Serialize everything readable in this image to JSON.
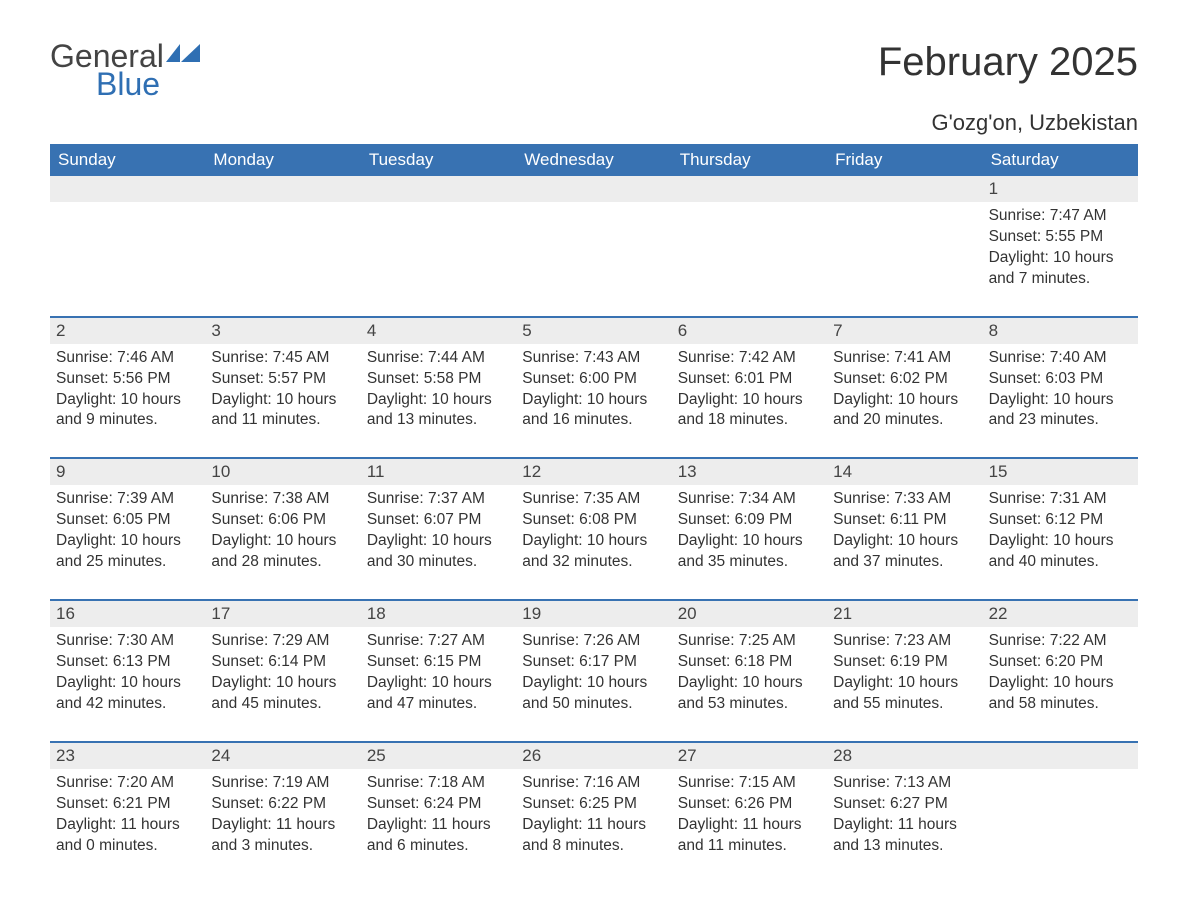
{
  "logo": {
    "general": "General",
    "blue": "Blue"
  },
  "title": "February 2025",
  "location": "G'ozg'on, Uzbekistan",
  "colors": {
    "header_bg": "#3872b2",
    "header_text": "#ffffff",
    "date_bar_bg": "#ededed",
    "rule": "#3872b2",
    "logo_blue": "#2f6fb3",
    "text": "#333333",
    "background": "#ffffff"
  },
  "day_names": [
    "Sunday",
    "Monday",
    "Tuesday",
    "Wednesday",
    "Thursday",
    "Friday",
    "Saturday"
  ],
  "weeks": [
    [
      {
        "date": "",
        "sunrise": "",
        "sunset": "",
        "daylight": ""
      },
      {
        "date": "",
        "sunrise": "",
        "sunset": "",
        "daylight": ""
      },
      {
        "date": "",
        "sunrise": "",
        "sunset": "",
        "daylight": ""
      },
      {
        "date": "",
        "sunrise": "",
        "sunset": "",
        "daylight": ""
      },
      {
        "date": "",
        "sunrise": "",
        "sunset": "",
        "daylight": ""
      },
      {
        "date": "",
        "sunrise": "",
        "sunset": "",
        "daylight": ""
      },
      {
        "date": "1",
        "sunrise": "Sunrise: 7:47 AM",
        "sunset": "Sunset: 5:55 PM",
        "daylight": "Daylight: 10 hours and 7 minutes."
      }
    ],
    [
      {
        "date": "2",
        "sunrise": "Sunrise: 7:46 AM",
        "sunset": "Sunset: 5:56 PM",
        "daylight": "Daylight: 10 hours and 9 minutes."
      },
      {
        "date": "3",
        "sunrise": "Sunrise: 7:45 AM",
        "sunset": "Sunset: 5:57 PM",
        "daylight": "Daylight: 10 hours and 11 minutes."
      },
      {
        "date": "4",
        "sunrise": "Sunrise: 7:44 AM",
        "sunset": "Sunset: 5:58 PM",
        "daylight": "Daylight: 10 hours and 13 minutes."
      },
      {
        "date": "5",
        "sunrise": "Sunrise: 7:43 AM",
        "sunset": "Sunset: 6:00 PM",
        "daylight": "Daylight: 10 hours and 16 minutes."
      },
      {
        "date": "6",
        "sunrise": "Sunrise: 7:42 AM",
        "sunset": "Sunset: 6:01 PM",
        "daylight": "Daylight: 10 hours and 18 minutes."
      },
      {
        "date": "7",
        "sunrise": "Sunrise: 7:41 AM",
        "sunset": "Sunset: 6:02 PM",
        "daylight": "Daylight: 10 hours and 20 minutes."
      },
      {
        "date": "8",
        "sunrise": "Sunrise: 7:40 AM",
        "sunset": "Sunset: 6:03 PM",
        "daylight": "Daylight: 10 hours and 23 minutes."
      }
    ],
    [
      {
        "date": "9",
        "sunrise": "Sunrise: 7:39 AM",
        "sunset": "Sunset: 6:05 PM",
        "daylight": "Daylight: 10 hours and 25 minutes."
      },
      {
        "date": "10",
        "sunrise": "Sunrise: 7:38 AM",
        "sunset": "Sunset: 6:06 PM",
        "daylight": "Daylight: 10 hours and 28 minutes."
      },
      {
        "date": "11",
        "sunrise": "Sunrise: 7:37 AM",
        "sunset": "Sunset: 6:07 PM",
        "daylight": "Daylight: 10 hours and 30 minutes."
      },
      {
        "date": "12",
        "sunrise": "Sunrise: 7:35 AM",
        "sunset": "Sunset: 6:08 PM",
        "daylight": "Daylight: 10 hours and 32 minutes."
      },
      {
        "date": "13",
        "sunrise": "Sunrise: 7:34 AM",
        "sunset": "Sunset: 6:09 PM",
        "daylight": "Daylight: 10 hours and 35 minutes."
      },
      {
        "date": "14",
        "sunrise": "Sunrise: 7:33 AM",
        "sunset": "Sunset: 6:11 PM",
        "daylight": "Daylight: 10 hours and 37 minutes."
      },
      {
        "date": "15",
        "sunrise": "Sunrise: 7:31 AM",
        "sunset": "Sunset: 6:12 PM",
        "daylight": "Daylight: 10 hours and 40 minutes."
      }
    ],
    [
      {
        "date": "16",
        "sunrise": "Sunrise: 7:30 AM",
        "sunset": "Sunset: 6:13 PM",
        "daylight": "Daylight: 10 hours and 42 minutes."
      },
      {
        "date": "17",
        "sunrise": "Sunrise: 7:29 AM",
        "sunset": "Sunset: 6:14 PM",
        "daylight": "Daylight: 10 hours and 45 minutes."
      },
      {
        "date": "18",
        "sunrise": "Sunrise: 7:27 AM",
        "sunset": "Sunset: 6:15 PM",
        "daylight": "Daylight: 10 hours and 47 minutes."
      },
      {
        "date": "19",
        "sunrise": "Sunrise: 7:26 AM",
        "sunset": "Sunset: 6:17 PM",
        "daylight": "Daylight: 10 hours and 50 minutes."
      },
      {
        "date": "20",
        "sunrise": "Sunrise: 7:25 AM",
        "sunset": "Sunset: 6:18 PM",
        "daylight": "Daylight: 10 hours and 53 minutes."
      },
      {
        "date": "21",
        "sunrise": "Sunrise: 7:23 AM",
        "sunset": "Sunset: 6:19 PM",
        "daylight": "Daylight: 10 hours and 55 minutes."
      },
      {
        "date": "22",
        "sunrise": "Sunrise: 7:22 AM",
        "sunset": "Sunset: 6:20 PM",
        "daylight": "Daylight: 10 hours and 58 minutes."
      }
    ],
    [
      {
        "date": "23",
        "sunrise": "Sunrise: 7:20 AM",
        "sunset": "Sunset: 6:21 PM",
        "daylight": "Daylight: 11 hours and 0 minutes."
      },
      {
        "date": "24",
        "sunrise": "Sunrise: 7:19 AM",
        "sunset": "Sunset: 6:22 PM",
        "daylight": "Daylight: 11 hours and 3 minutes."
      },
      {
        "date": "25",
        "sunrise": "Sunrise: 7:18 AM",
        "sunset": "Sunset: 6:24 PM",
        "daylight": "Daylight: 11 hours and 6 minutes."
      },
      {
        "date": "26",
        "sunrise": "Sunrise: 7:16 AM",
        "sunset": "Sunset: 6:25 PM",
        "daylight": "Daylight: 11 hours and 8 minutes."
      },
      {
        "date": "27",
        "sunrise": "Sunrise: 7:15 AM",
        "sunset": "Sunset: 6:26 PM",
        "daylight": "Daylight: 11 hours and 11 minutes."
      },
      {
        "date": "28",
        "sunrise": "Sunrise: 7:13 AM",
        "sunset": "Sunset: 6:27 PM",
        "daylight": "Daylight: 11 hours and 13 minutes."
      },
      {
        "date": "",
        "sunrise": "",
        "sunset": "",
        "daylight": ""
      }
    ]
  ]
}
